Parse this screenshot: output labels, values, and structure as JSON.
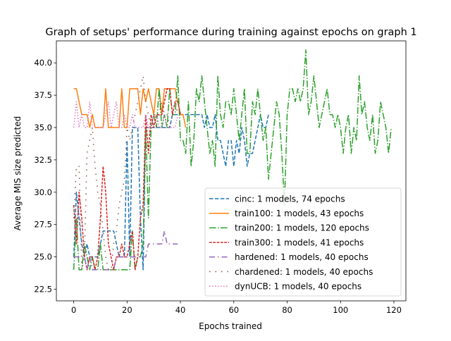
{
  "chart_data": {
    "type": "line",
    "title": "Graph of setups' performance during training against epochs on graph 1",
    "xlabel": "Epochs trained",
    "ylabel": "Average MIS size predicted",
    "xlim": [
      -6.5,
      124.5
    ],
    "ylim": [
      21.6,
      41.7
    ],
    "xticks": [
      0,
      20,
      40,
      60,
      80,
      100,
      120
    ],
    "yticks": [
      22.5,
      25.0,
      27.5,
      30.0,
      32.5,
      35.0,
      37.5,
      40.0
    ],
    "xtick_labels": [
      "0",
      "20",
      "40",
      "60",
      "80",
      "100",
      "120"
    ],
    "ytick_labels": [
      "22.5",
      "25.0",
      "27.5",
      "30.0",
      "32.5",
      "35.0",
      "37.5",
      "40.0"
    ],
    "grid": false,
    "legend_position": "lower-right",
    "series": [
      {
        "name": "cinc: 1 models, 74 epochs",
        "color": "#1f77b4",
        "dash": "dashed",
        "values": [
          25,
          30,
          28,
          26,
          25,
          26,
          25,
          25,
          25,
          25,
          26,
          27,
          27,
          27,
          27,
          27,
          26,
          25,
          25,
          25,
          34,
          25,
          35,
          35,
          35,
          28,
          24,
          35,
          35,
          35,
          35,
          35,
          35,
          35,
          35,
          35,
          35,
          36,
          36,
          36,
          36,
          36,
          36,
          36,
          36,
          36,
          36,
          36,
          36,
          35,
          36,
          35,
          35,
          36,
          34,
          34,
          33,
          32,
          34,
          34,
          32,
          34,
          33,
          35,
          34,
          32,
          33,
          33,
          34,
          35,
          36,
          35,
          35,
          36
        ]
      },
      {
        "name": "train100: 1 models, 43 epochs",
        "color": "#ff7f0e",
        "dash": "solid",
        "values": [
          38,
          38,
          37,
          36,
          36,
          36,
          35,
          36,
          35,
          35,
          35,
          35,
          38,
          35,
          35,
          35,
          35,
          35,
          38,
          35,
          35,
          38,
          38,
          38,
          38,
          36,
          38,
          37,
          38,
          37,
          36,
          38,
          38,
          36,
          38,
          38,
          38,
          38,
          38,
          37,
          36,
          36,
          35
        ]
      },
      {
        "name": "train200: 1 models, 120 epochs",
        "color": "#2ca02c",
        "dash": "dashdot",
        "values": [
          24,
          28,
          24,
          24,
          26,
          25,
          24,
          25,
          24,
          24,
          26,
          24,
          24,
          24,
          24,
          24,
          24,
          24,
          24,
          24,
          24,
          24,
          27,
          24,
          25,
          25,
          26,
          35,
          28,
          35,
          36,
          35,
          38,
          35,
          36,
          35,
          38,
          36,
          36,
          39,
          34,
          34,
          33,
          37,
          32,
          34,
          38,
          37,
          39,
          37,
          35,
          33,
          34,
          32,
          39,
          36,
          35,
          37,
          37,
          36,
          38,
          36,
          34,
          36,
          38,
          33,
          33,
          37,
          36,
          38,
          36,
          34,
          35,
          31,
          33,
          35,
          37,
          36,
          33,
          29,
          36,
          38,
          38,
          37,
          38,
          37,
          38,
          41,
          36,
          37,
          39,
          37,
          35,
          36,
          37,
          38,
          36,
          36,
          35,
          36,
          35,
          33,
          35,
          36,
          33,
          35,
          34,
          39,
          36,
          37,
          35,
          34,
          36,
          33,
          34,
          37,
          36,
          35,
          33,
          35
        ]
      },
      {
        "name": "train300: 1 models, 41 epochs",
        "color": "#d62728",
        "dash": "densely-dashed",
        "values": [
          29,
          26,
          30,
          28,
          25,
          24,
          25,
          25,
          24,
          25,
          28,
          32,
          30,
          26,
          25,
          24,
          25,
          25,
          26,
          25,
          25,
          26,
          27,
          24,
          25,
          28,
          29,
          36,
          33,
          36,
          35,
          36,
          36,
          36,
          37,
          38,
          38,
          36,
          37,
          37,
          36
        ]
      },
      {
        "name": "hardened: 1 models, 40 epochs",
        "color": "#9467bd",
        "dash": "dashdot-sparse",
        "values": [
          25,
          25,
          25,
          25,
          25,
          24,
          25,
          24,
          24,
          24,
          24,
          24,
          24,
          24,
          24,
          24,
          25,
          25,
          25,
          25,
          25,
          25,
          25,
          25,
          25,
          25,
          25,
          25,
          26,
          26,
          26,
          26,
          26,
          26,
          27,
          26,
          26,
          26,
          26,
          26
        ]
      },
      {
        "name": "chardened: 1 models, 40 epochs",
        "color": "#8c564b",
        "dash": "dotted-sparse",
        "values": [
          28,
          32,
          32,
          24,
          25,
          33,
          34,
          35,
          32,
          30,
          29,
          27,
          25,
          24,
          24,
          26,
          27,
          29,
          30,
          31,
          35,
          34,
          35,
          36,
          37,
          38,
          39,
          37,
          36,
          35,
          36,
          35,
          36,
          37,
          36,
          36,
          35,
          36,
          37,
          36
        ]
      },
      {
        "name": "dynUCB: 1 models, 40 epochs",
        "color": "#e377c2",
        "dash": "dotted",
        "values": [
          35,
          37,
          35,
          36,
          35,
          35,
          37,
          35,
          35,
          35,
          35,
          35,
          36,
          37,
          35,
          36,
          37,
          35,
          35,
          36,
          35,
          35,
          36,
          35,
          35,
          35,
          35,
          36,
          35,
          35,
          36,
          36,
          35,
          35,
          36,
          35,
          35,
          35,
          35,
          36
        ]
      }
    ]
  }
}
